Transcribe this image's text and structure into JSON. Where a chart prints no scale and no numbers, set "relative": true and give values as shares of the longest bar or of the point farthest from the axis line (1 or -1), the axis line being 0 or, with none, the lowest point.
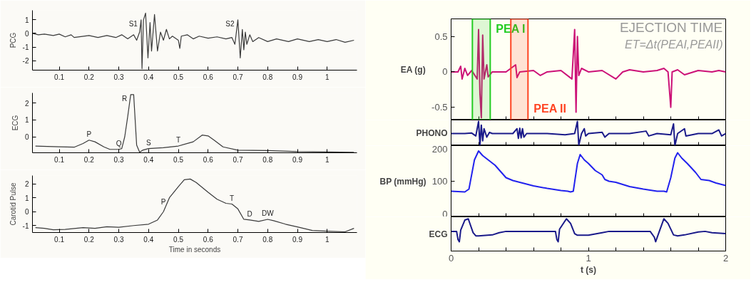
{
  "chart_data": [
    {
      "type": "line",
      "ylabel": "PCG",
      "xlim": [
        0.01,
        1.1
      ],
      "ylim": [
        -2.7,
        1.7
      ],
      "xticks": [
        0.1,
        0.2,
        0.3,
        0.4,
        0.5,
        0.6,
        0.7,
        0.8,
        0.9,
        1
      ],
      "yticks": [
        -2,
        -1,
        0,
        1
      ],
      "series": [
        {
          "color": "#3a3a3a",
          "x": [
            0.01,
            0.03,
            0.05,
            0.08,
            0.1,
            0.12,
            0.14,
            0.15,
            0.2,
            0.23,
            0.26,
            0.29,
            0.31,
            0.33,
            0.35,
            0.36,
            0.37,
            0.375,
            0.378,
            0.383,
            0.39,
            0.398,
            0.405,
            0.41,
            0.42,
            0.43,
            0.44,
            0.45,
            0.46,
            0.47,
            0.48,
            0.5,
            0.505,
            0.51,
            0.53,
            0.55,
            0.57,
            0.6,
            0.63,
            0.66,
            0.68,
            0.69,
            0.7,
            0.708,
            0.715,
            0.72,
            0.725,
            0.73,
            0.74,
            0.75,
            0.77,
            0.8,
            0.83,
            0.87,
            0.9,
            0.94,
            0.97,
            1.0,
            1.03,
            1.06,
            1.09
          ],
          "values": [
            0,
            -0.1,
            -0.05,
            -0.15,
            -0.05,
            -0.25,
            -0.1,
            -0.3,
            -0.15,
            -0.3,
            -0.15,
            -0.3,
            -0.1,
            -0.4,
            -0.1,
            -0.5,
            0.1,
            1.0,
            -2.6,
            1.0,
            1.5,
            -1.8,
            0.8,
            -1.3,
            1.4,
            -1.3,
            0.1,
            -0.5,
            0.3,
            -0.4,
            -0.2,
            -0.5,
            -1.1,
            -0.2,
            -0.1,
            -0.4,
            -0.2,
            -0.35,
            -0.25,
            -0.4,
            -0.3,
            -0.8,
            1.0,
            -1.8,
            0.3,
            -1.2,
            0.1,
            -0.8,
            -0.1,
            -0.6,
            -0.3,
            -0.6,
            -0.4,
            -0.6,
            -0.4,
            -0.6,
            -0.45,
            -0.6,
            -0.45,
            -0.65,
            -0.5
          ]
        }
      ],
      "annotations": [
        {
          "text": "S1",
          "x": 0.375,
          "y": 1.0
        },
        {
          "text": "S2",
          "x": 0.7,
          "y": 1.0
        }
      ]
    },
    {
      "type": "line",
      "ylabel": "ECG",
      "xlim": [
        0.01,
        1.1
      ],
      "ylim": [
        -0.95,
        2.6
      ],
      "xticks": [
        0.1,
        0.2,
        0.3,
        0.4,
        0.5,
        0.6,
        0.7,
        0.8,
        0.9,
        1
      ],
      "yticks": [
        0,
        1,
        2
      ],
      "series": [
        {
          "color": "#3a3a3a",
          "x": [
            0.02,
            0.1,
            0.15,
            0.18,
            0.2,
            0.22,
            0.25,
            0.27,
            0.3,
            0.31,
            0.32,
            0.33,
            0.34,
            0.35,
            0.355,
            0.36,
            0.37,
            0.38,
            0.4,
            0.45,
            0.5,
            0.55,
            0.58,
            0.6,
            0.62,
            0.65,
            0.7,
            0.8,
            0.9,
            1.0,
            1.09
          ],
          "values": [
            -0.55,
            -0.6,
            -0.62,
            -0.4,
            -0.2,
            -0.3,
            -0.6,
            -0.75,
            -0.75,
            -0.7,
            0.0,
            1.2,
            2.5,
            2.5,
            1.0,
            -0.5,
            -0.92,
            -0.8,
            -0.7,
            -0.65,
            -0.55,
            -0.3,
            0.1,
            0.05,
            -0.2,
            -0.6,
            -0.8,
            -0.82,
            -0.88,
            -0.9,
            -0.92
          ]
        }
      ],
      "annotations": [
        {
          "text": "P",
          "x": 0.2,
          "y": -0.2
        },
        {
          "text": "Q",
          "x": 0.3,
          "y": -0.75
        },
        {
          "text": "R",
          "x": 0.34,
          "y": 2.5
        },
        {
          "text": "S",
          "x": 0.4,
          "y": -0.7
        },
        {
          "text": "T",
          "x": 0.5,
          "y": -0.55
        }
      ]
    },
    {
      "type": "line",
      "ylabel": "Carotid Pulse",
      "xlabel": "Time in seconds",
      "xlim": [
        0.01,
        1.1
      ],
      "ylim": [
        -1.5,
        2.6
      ],
      "xticks": [
        0.1,
        0.2,
        0.3,
        0.4,
        0.5,
        0.6,
        0.7,
        0.8,
        0.9,
        1
      ],
      "yticks": [
        -1,
        0,
        1,
        2
      ],
      "series": [
        {
          "color": "#3a3a3a",
          "x": [
            0.02,
            0.05,
            0.08,
            0.12,
            0.18,
            0.22,
            0.26,
            0.3,
            0.35,
            0.4,
            0.43,
            0.45,
            0.47,
            0.5,
            0.52,
            0.54,
            0.56,
            0.6,
            0.63,
            0.66,
            0.68,
            0.7,
            0.72,
            0.74,
            0.77,
            0.8,
            0.82,
            0.86,
            0.9,
            0.95,
            1.0,
            1.06,
            1.09
          ],
          "values": [
            -1.15,
            -1.2,
            -1.3,
            -1.28,
            -1.15,
            -1.2,
            -1.08,
            -1.12,
            -1.0,
            -0.9,
            -0.6,
            0,
            1.0,
            1.8,
            2.3,
            2.35,
            2.1,
            1.4,
            0.9,
            0.6,
            0.55,
            0.2,
            -0.55,
            -0.6,
            -0.7,
            -0.55,
            -0.65,
            -0.9,
            -1.1,
            -1.35,
            -1.4,
            -1.45,
            -1.2
          ]
        }
      ],
      "annotations": [
        {
          "text": "P",
          "x": 0.47,
          "y": 1.0
        },
        {
          "text": "T",
          "x": 0.68,
          "y": 0.55
        },
        {
          "text": "D",
          "x": 0.74,
          "y": -0.6
        },
        {
          "text": "DW",
          "x": 0.8,
          "y": -0.55
        }
      ]
    },
    {
      "type": "line",
      "ylabel": "EA (g)",
      "xlim": [
        0,
        2
      ],
      "ylim": [
        -0.68,
        0.75
      ],
      "tick_labels": "y",
      "yticks": [
        -0.5,
        0,
        0.5
      ],
      "xticks": [
        0,
        {
          "value": 0.2,
          "label": null
        },
        {
          "value": 0.4,
          "label": null
        },
        {
          "value": 0.6,
          "label": null
        },
        {
          "value": 0.8,
          "label": null
        },
        1,
        {
          "value": 1.2,
          "label": null
        },
        {
          "value": 1.4,
          "label": null
        },
        {
          "value": 1.6,
          "label": null
        },
        {
          "value": 1.8,
          "label": null
        },
        2
      ],
      "series": [
        {
          "color": "#cc1177",
          "x": [
            0,
            0.05,
            0.07,
            0.08,
            0.1,
            0.12,
            0.15,
            0.19,
            0.2,
            0.21,
            0.22,
            0.23,
            0.24,
            0.26,
            0.27,
            0.3,
            0.4,
            0.47,
            0.48,
            0.5,
            0.6,
            0.65,
            0.7,
            0.8,
            0.88,
            0.9,
            0.91,
            0.92,
            0.93,
            0.95,
            1.0,
            1.1,
            1.2,
            1.25,
            1.3,
            1.4,
            1.5,
            1.55,
            1.58,
            1.6,
            1.61,
            1.65,
            1.7,
            1.8,
            1.9,
            1.95,
            2
          ],
          "values": [
            0,
            0,
            0.08,
            -0.1,
            0.05,
            -0.05,
            0.02,
            -0.1,
            0.6,
            -0.3,
            -0.65,
            0.52,
            -0.1,
            0.1,
            -0.07,
            0,
            0,
            0.1,
            -0.08,
            0,
            0.02,
            -0.05,
            0,
            0.02,
            -0.1,
            0.6,
            -0.57,
            0.5,
            -0.05,
            0.05,
            0,
            0.02,
            -0.1,
            0,
            0.03,
            0,
            0.02,
            0.05,
            0,
            -0.5,
            0,
            0.03,
            -0.04,
            0.02,
            0,
            0.02,
            0
          ]
        }
      ],
      "bands": [
        {
          "axis": "x",
          "from": 0.155,
          "to": 0.285,
          "label": "PEA I",
          "color": "#22cc22"
        },
        {
          "axis": "x",
          "from": 0.435,
          "to": 0.56,
          "label": "PEA II",
          "color": "#ff4422"
        }
      ],
      "annotations": [
        "EJECTION TIME",
        "ET=Δt(PEAI,PEAII)"
      ]
    },
    {
      "type": "line",
      "ylabel": "PHONO",
      "relative": true,
      "xlim": [
        0,
        2
      ],
      "tick_labels": false,
      "xticks": [
        0,
        {
          "value": 0.2,
          "label": null
        },
        {
          "value": 0.4,
          "label": null
        },
        {
          "value": 0.6,
          "label": null
        },
        {
          "value": 0.8,
          "label": null
        },
        1,
        {
          "value": 1.2,
          "label": null
        },
        {
          "value": 1.4,
          "label": null
        },
        {
          "value": 1.6,
          "label": null
        },
        {
          "value": 1.8,
          "label": null
        },
        2
      ],
      "series": [
        {
          "color": "#1a1a8a",
          "x": [
            0,
            0.1,
            0.15,
            0.18,
            0.2,
            0.21,
            0.22,
            0.23,
            0.24,
            0.26,
            0.28,
            0.3,
            0.45,
            0.48,
            0.49,
            0.5,
            0.51,
            0.52,
            0.53,
            0.55,
            0.7,
            0.83,
            0.9,
            0.92,
            0.93,
            0.95,
            0.97,
            0.98,
            1.0,
            1.1,
            1.12,
            1.15,
            1.3,
            1.42,
            1.44,
            1.5,
            1.6,
            1.62,
            1.63,
            1.65,
            1.7,
            1.71,
            1.8,
            1.9,
            1.95,
            1.97,
            2
          ],
          "values": [
            0.5,
            0.5,
            0.52,
            0.4,
            1.0,
            0.0,
            0.85,
            0.2,
            0.7,
            0.35,
            0.55,
            0.5,
            0.5,
            0.7,
            0.3,
            0.72,
            0.32,
            0.7,
            0.35,
            0.5,
            0.5,
            0.45,
            0.5,
            1.0,
            0.02,
            0.5,
            0.7,
            0.4,
            0.5,
            0.55,
            0.35,
            0.5,
            0.5,
            0.6,
            0.4,
            0.5,
            0.45,
            0.9,
            0.0,
            0.5,
            0.7,
            0.4,
            0.5,
            0.5,
            0.65,
            0.4,
            0.5
          ]
        }
      ]
    },
    {
      "type": "line",
      "ylabel": "BP (mmHg)",
      "xlim": [
        0,
        2
      ],
      "ylim": [
        0,
        200
      ],
      "tick_labels": "y",
      "yticks": [
        0,
        100,
        200
      ],
      "xticks": [
        0,
        {
          "value": 0.2,
          "label": null
        },
        {
          "value": 0.4,
          "label": null
        },
        {
          "value": 0.6,
          "label": null
        },
        {
          "value": 0.8,
          "label": null
        },
        1,
        {
          "value": 1.2,
          "label": null
        },
        {
          "value": 1.4,
          "label": null
        },
        {
          "value": 1.6,
          "label": null
        },
        {
          "value": 1.8,
          "label": null
        },
        2
      ],
      "series": [
        {
          "color": "#2222ee",
          "x": [
            0,
            0.1,
            0.13,
            0.17,
            0.2,
            0.23,
            0.27,
            0.32,
            0.4,
            0.45,
            0.52,
            0.6,
            0.7,
            0.8,
            0.85,
            0.87,
            0.89,
            0.92,
            0.94,
            0.97,
            1.0,
            1.05,
            1.1,
            1.12,
            1.15,
            1.2,
            1.3,
            1.4,
            1.45,
            1.5,
            1.55,
            1.57,
            1.6,
            1.63,
            1.65,
            1.68,
            1.72,
            1.78,
            1.82,
            1.88,
            1.93,
            2.0
          ],
          "values": [
            72,
            70,
            78,
            160,
            185,
            172,
            160,
            145,
            110,
            102,
            95,
            87,
            80,
            74,
            72,
            70,
            72,
            150,
            175,
            160,
            150,
            130,
            118,
            105,
            100,
            97,
            85,
            78,
            75,
            72,
            72,
            70,
            110,
            165,
            180,
            165,
            150,
            125,
            105,
            102,
            95,
            88
          ]
        }
      ]
    },
    {
      "type": "line",
      "ylabel": "ECG",
      "xlabel": "t (s)",
      "relative": true,
      "xlim": [
        0,
        2
      ],
      "tick_labels": "x",
      "xticks": [
        0,
        {
          "value": 0.2,
          "label": null
        },
        {
          "value": 0.4,
          "label": null
        },
        {
          "value": 0.6,
          "label": null
        },
        {
          "value": 0.8,
          "label": null
        },
        1,
        {
          "value": 1.2,
          "label": null
        },
        {
          "value": 1.4,
          "label": null
        },
        {
          "value": 1.6,
          "label": null
        },
        {
          "value": 1.8,
          "label": null
        },
        2
      ],
      "series": [
        {
          "color": "#1a1a8a",
          "x": [
            0,
            0.04,
            0.05,
            0.06,
            0.07,
            0.1,
            0.125,
            0.16,
            0.18,
            0.2,
            0.3,
            0.35,
            0.4,
            0.5,
            0.7,
            0.76,
            0.77,
            0.78,
            0.79,
            0.84,
            0.87,
            0.9,
            0.92,
            1.0,
            1.1,
            1.15,
            1.3,
            1.45,
            1.48,
            1.49,
            1.52,
            1.55,
            1.58,
            1.62,
            1.65,
            1.7,
            1.8,
            1.85,
            1.9,
            2
          ],
          "values": [
            0.61,
            0.61,
            0.36,
            0.29,
            0.65,
            0.96,
            1.0,
            0.57,
            0.47,
            0.47,
            0.5,
            0.57,
            0.61,
            0.61,
            0.61,
            0.61,
            0.36,
            0.29,
            0.68,
            1.0,
            0.86,
            0.54,
            0.49,
            0.49,
            0.57,
            0.61,
            0.61,
            0.61,
            0.43,
            0.29,
            0.65,
            1.0,
            0.86,
            0.5,
            0.47,
            0.5,
            0.59,
            0.61,
            0.57,
            0.54
          ]
        }
      ]
    }
  ]
}
